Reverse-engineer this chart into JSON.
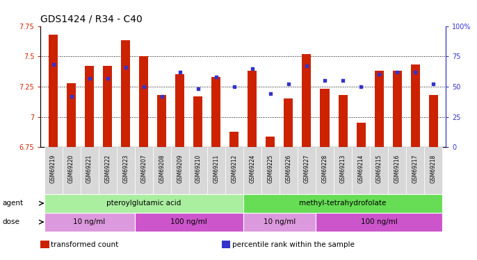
{
  "title": "GDS1424 / R34 - C40",
  "samples": [
    "GSM69219",
    "GSM69220",
    "GSM69221",
    "GSM69222",
    "GSM69223",
    "GSM69207",
    "GSM69208",
    "GSM69209",
    "GSM69210",
    "GSM69211",
    "GSM69212",
    "GSM69224",
    "GSM69225",
    "GSM69226",
    "GSM69227",
    "GSM69228",
    "GSM69213",
    "GSM69214",
    "GSM69215",
    "GSM69216",
    "GSM69217",
    "GSM69218"
  ],
  "bar_values": [
    7.68,
    7.28,
    7.42,
    7.42,
    7.63,
    7.5,
    7.18,
    7.35,
    7.17,
    7.33,
    6.88,
    7.38,
    6.84,
    7.15,
    7.52,
    7.23,
    7.18,
    6.95,
    7.38,
    7.38,
    7.43,
    7.18
  ],
  "percentile_values": [
    68,
    42,
    57,
    57,
    66,
    50,
    42,
    62,
    48,
    58,
    50,
    65,
    44,
    52,
    67,
    55,
    55,
    50,
    60,
    62,
    62,
    52
  ],
  "ylim_left": [
    6.75,
    7.75
  ],
  "ylim_right": [
    0,
    100
  ],
  "yticks_left": [
    6.75,
    7.0,
    7.25,
    7.5,
    7.75
  ],
  "ytick_left_labels": [
    "6.75",
    "7",
    "7.25",
    "7.5",
    "7.75"
  ],
  "yticks_right": [
    0,
    25,
    50,
    75,
    100
  ],
  "ytick_right_labels": [
    "0",
    "25",
    "50",
    "75",
    "100%"
  ],
  "grid_values": [
    7.0,
    7.25,
    7.5
  ],
  "bar_color": "#cc2200",
  "dot_color": "#3333cc",
  "bar_bottom": 6.75,
  "agent_groups": [
    {
      "label": "pteroylglutamic acid",
      "start": 0,
      "end": 10,
      "color": "#aaeea0"
    },
    {
      "label": "methyl-tetrahydrofolate",
      "start": 11,
      "end": 21,
      "color": "#66dd55"
    }
  ],
  "dose_groups": [
    {
      "label": "10 ng/ml",
      "start": 0,
      "end": 4,
      "color": "#dd99dd"
    },
    {
      "label": "100 ng/ml",
      "start": 5,
      "end": 10,
      "color": "#cc55cc"
    },
    {
      "label": "10 ng/ml",
      "start": 11,
      "end": 14,
      "color": "#dd99dd"
    },
    {
      "label": "100 ng/ml",
      "start": 15,
      "end": 21,
      "color": "#cc55cc"
    }
  ],
  "legend_items": [
    {
      "label": "transformed count",
      "color": "#cc2200"
    },
    {
      "label": "percentile rank within the sample",
      "color": "#3333cc"
    }
  ],
  "agent_label": "agent",
  "dose_label": "dose",
  "bg_color": "#ffffff",
  "plot_bg_color": "#ffffff",
  "title_fontsize": 10,
  "tick_fontsize": 7,
  "label_fontsize": 8
}
